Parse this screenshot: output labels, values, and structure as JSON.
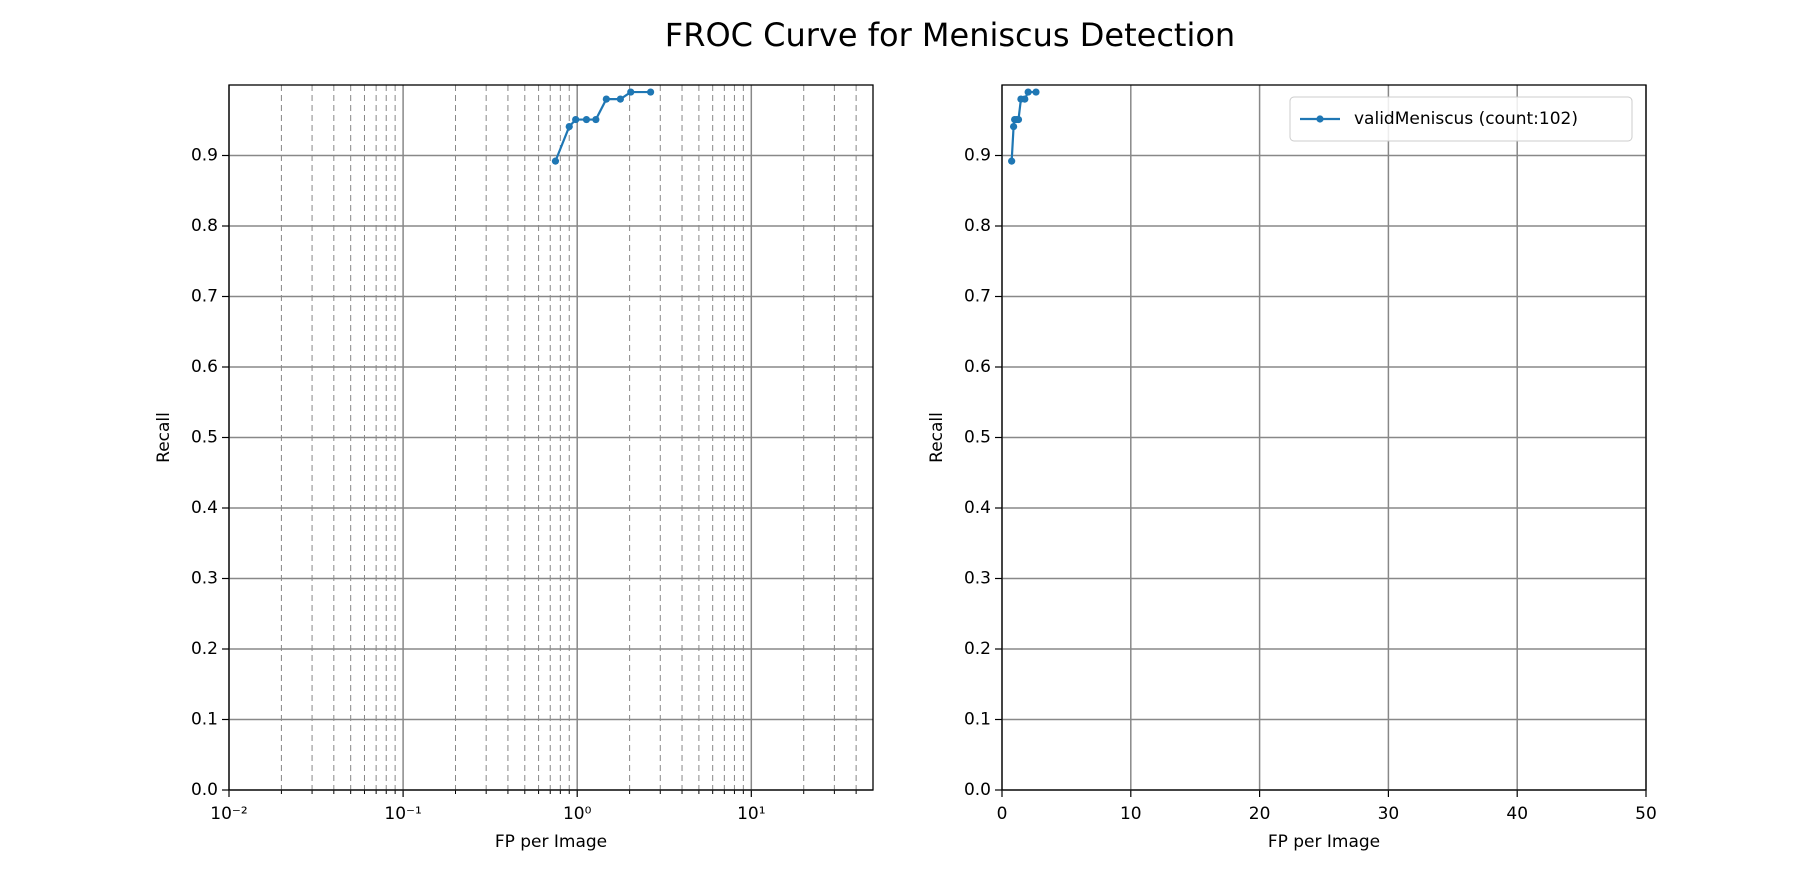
{
  "title": "FROC Curve for Meniscus Detection",
  "chart_data": [
    {
      "type": "line",
      "xlabel": "FP per Image",
      "ylabel": "Recall",
      "xscale": "log",
      "xlim": [
        0.01,
        50
      ],
      "ylim": [
        0,
        1
      ],
      "xticks": [
        {
          "value": 0.01,
          "label": "10⁻²"
        },
        {
          "value": 0.1,
          "label": "10⁻¹"
        },
        {
          "value": 1,
          "label": "10⁰"
        },
        {
          "value": 10,
          "label": "10¹"
        }
      ],
      "xminorticks": [
        0.02,
        0.03,
        0.04,
        0.05,
        0.06,
        0.07,
        0.08,
        0.09,
        0.2,
        0.3,
        0.4,
        0.5,
        0.6,
        0.7,
        0.8,
        0.9,
        2,
        3,
        4,
        5,
        6,
        7,
        8,
        9,
        20,
        30,
        40
      ],
      "yticks": [
        {
          "value": 0,
          "label": "0.0"
        },
        0.1,
        0.2,
        0.3,
        0.4,
        0.5,
        0.6,
        0.7,
        0.8,
        0.9
      ],
      "grid": true,
      "series": [
        {
          "color": "#1f77b4",
          "x": [
            0.75,
            0.9,
            0.98,
            1.13,
            1.28,
            1.47,
            1.77,
            2.03,
            2.64
          ],
          "values": [
            0.892,
            0.941,
            0.951,
            0.951,
            0.951,
            0.98,
            0.98,
            0.99,
            0.99
          ]
        }
      ]
    },
    {
      "type": "line",
      "xlabel": "FP per Image",
      "ylabel": "Recall",
      "xscale": "linear",
      "xlim": [
        0,
        50
      ],
      "ylim": [
        0,
        1
      ],
      "xticks": [
        0,
        10,
        20,
        30,
        40,
        50
      ],
      "yticks": [
        {
          "value": 0,
          "label": "0.0"
        },
        0.1,
        0.2,
        0.3,
        0.4,
        0.5,
        0.6,
        0.7,
        0.8,
        0.9
      ],
      "grid": true,
      "legend": "upper right",
      "series": [
        {
          "name": "validMeniscus (count:102)",
          "color": "#1f77b4",
          "x": [
            0.75,
            0.9,
            0.98,
            1.13,
            1.28,
            1.47,
            1.77,
            2.03,
            2.64
          ],
          "values": [
            0.892,
            0.941,
            0.951,
            0.951,
            0.951,
            0.98,
            0.98,
            0.99,
            0.99
          ]
        }
      ]
    }
  ]
}
